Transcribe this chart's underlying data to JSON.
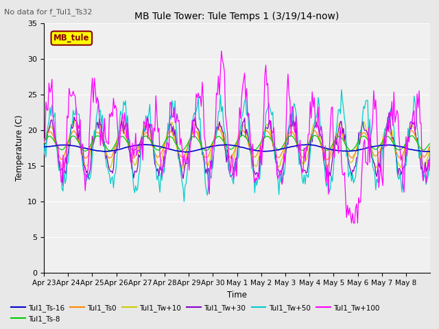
{
  "title": "MB Tule Tower: Tule Temps 1 (3/19/14-now)",
  "top_left_note": "No data for f_Tul1_Ts32",
  "ylabel": "Temperature (C)",
  "xlabel": "Time",
  "ylim": [
    0,
    35
  ],
  "yticks": [
    0,
    5,
    10,
    15,
    20,
    25,
    30,
    35
  ],
  "xtick_labels": [
    "Apr 23",
    "Apr 24",
    "Apr 25",
    "Apr 26",
    "Apr 27",
    "Apr 28",
    "Apr 29",
    "Apr 30",
    "May 1",
    "May 2",
    "May 3",
    "May 4",
    "May 5",
    "May 6",
    "May 7",
    "May 8"
  ],
  "legend_box_label": "MB_tule",
  "legend_box_color": "#ffff00",
  "legend_box_border": "#8b0000",
  "series_colors": {
    "Tul1_Ts-16": "#0000cc",
    "Tul1_Ts-8": "#00cc00",
    "Tul1_Ts0": "#ff8800",
    "Tul1_Tw+10": "#cccc00",
    "Tul1_Tw+30": "#8800cc",
    "Tul1_Tw+50": "#00cccc",
    "Tul1_Tw+100": "#ff00ff"
  },
  "bg_color": "#e8e8e8",
  "plot_bg_color": "#e8e8e8",
  "plot_inner_bg": "#f0f0f0",
  "grid_color": "#ffffff"
}
